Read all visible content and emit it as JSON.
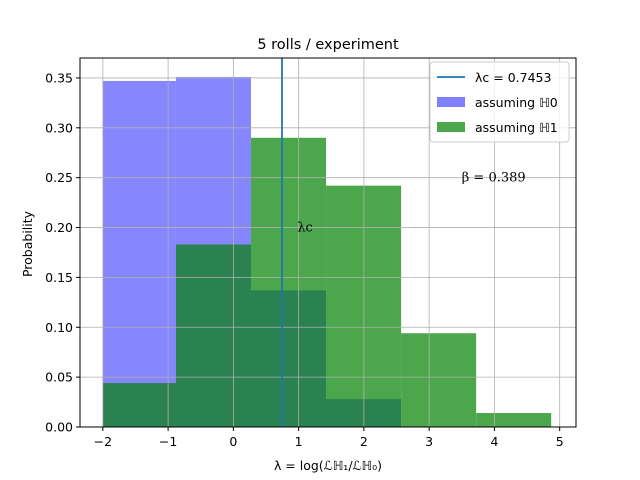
{
  "chart_data": {
    "type": "histogram",
    "title": "5 rolls / experiment",
    "xlabel": "λ = log(ℒℍ₁/ℒℍ₀)",
    "ylabel": "Probability",
    "xlim": [
      -2.35,
      5.25
    ],
    "ylim": [
      0,
      0.37
    ],
    "xticks": [
      -2,
      -1,
      0,
      1,
      2,
      3,
      4,
      5
    ],
    "xtick_labels": [
      "−2",
      "−1",
      "0",
      "1",
      "2",
      "3",
      "4",
      "5"
    ],
    "yticks": [
      0.0,
      0.05,
      0.1,
      0.15,
      0.2,
      0.25,
      0.3,
      0.35
    ],
    "ytick_labels": [
      "0.00",
      "0.05",
      "0.10",
      "0.15",
      "0.20",
      "0.25",
      "0.30",
      "0.35"
    ],
    "grid": true,
    "legend_position": "top-right",
    "series": [
      {
        "name": "assuming ℍ0",
        "color": "#8080ff",
        "bins": [
          {
            "x0": -2.0,
            "x1": -0.88,
            "value": 0.347
          },
          {
            "x0": -0.88,
            "x1": 0.27,
            "value": 0.351
          },
          {
            "x0": 0.27,
            "x1": 1.42,
            "value": 0.137
          },
          {
            "x0": 1.42,
            "x1": 2.57,
            "value": 0.028
          },
          {
            "x0": 2.57,
            "x1": 3.72,
            "value": 0.0
          },
          {
            "x0": 3.72,
            "x1": 4.87,
            "value": 0.0
          }
        ]
      },
      {
        "name": "assuming ℍ1",
        "color": "#4ca64c",
        "bins": [
          {
            "x0": -2.0,
            "x1": -0.88,
            "value": 0.044
          },
          {
            "x0": -0.88,
            "x1": 0.27,
            "value": 0.183
          },
          {
            "x0": 0.27,
            "x1": 1.42,
            "value": 0.29
          },
          {
            "x0": 1.42,
            "x1": 2.57,
            "value": 0.242
          },
          {
            "x0": 2.57,
            "x1": 3.72,
            "value": 0.094
          },
          {
            "x0": 3.72,
            "x1": 4.87,
            "value": 0.014
          }
        ]
      }
    ],
    "vline": {
      "x": 0.7453,
      "color": "#1f77b4",
      "legend_label": "λc = 0.7453"
    },
    "annotations": [
      {
        "text": "λc",
        "x": 0.98,
        "y": 0.2
      },
      {
        "text": "β = 0.389",
        "x": 3.5,
        "y": 0.25
      }
    ]
  }
}
